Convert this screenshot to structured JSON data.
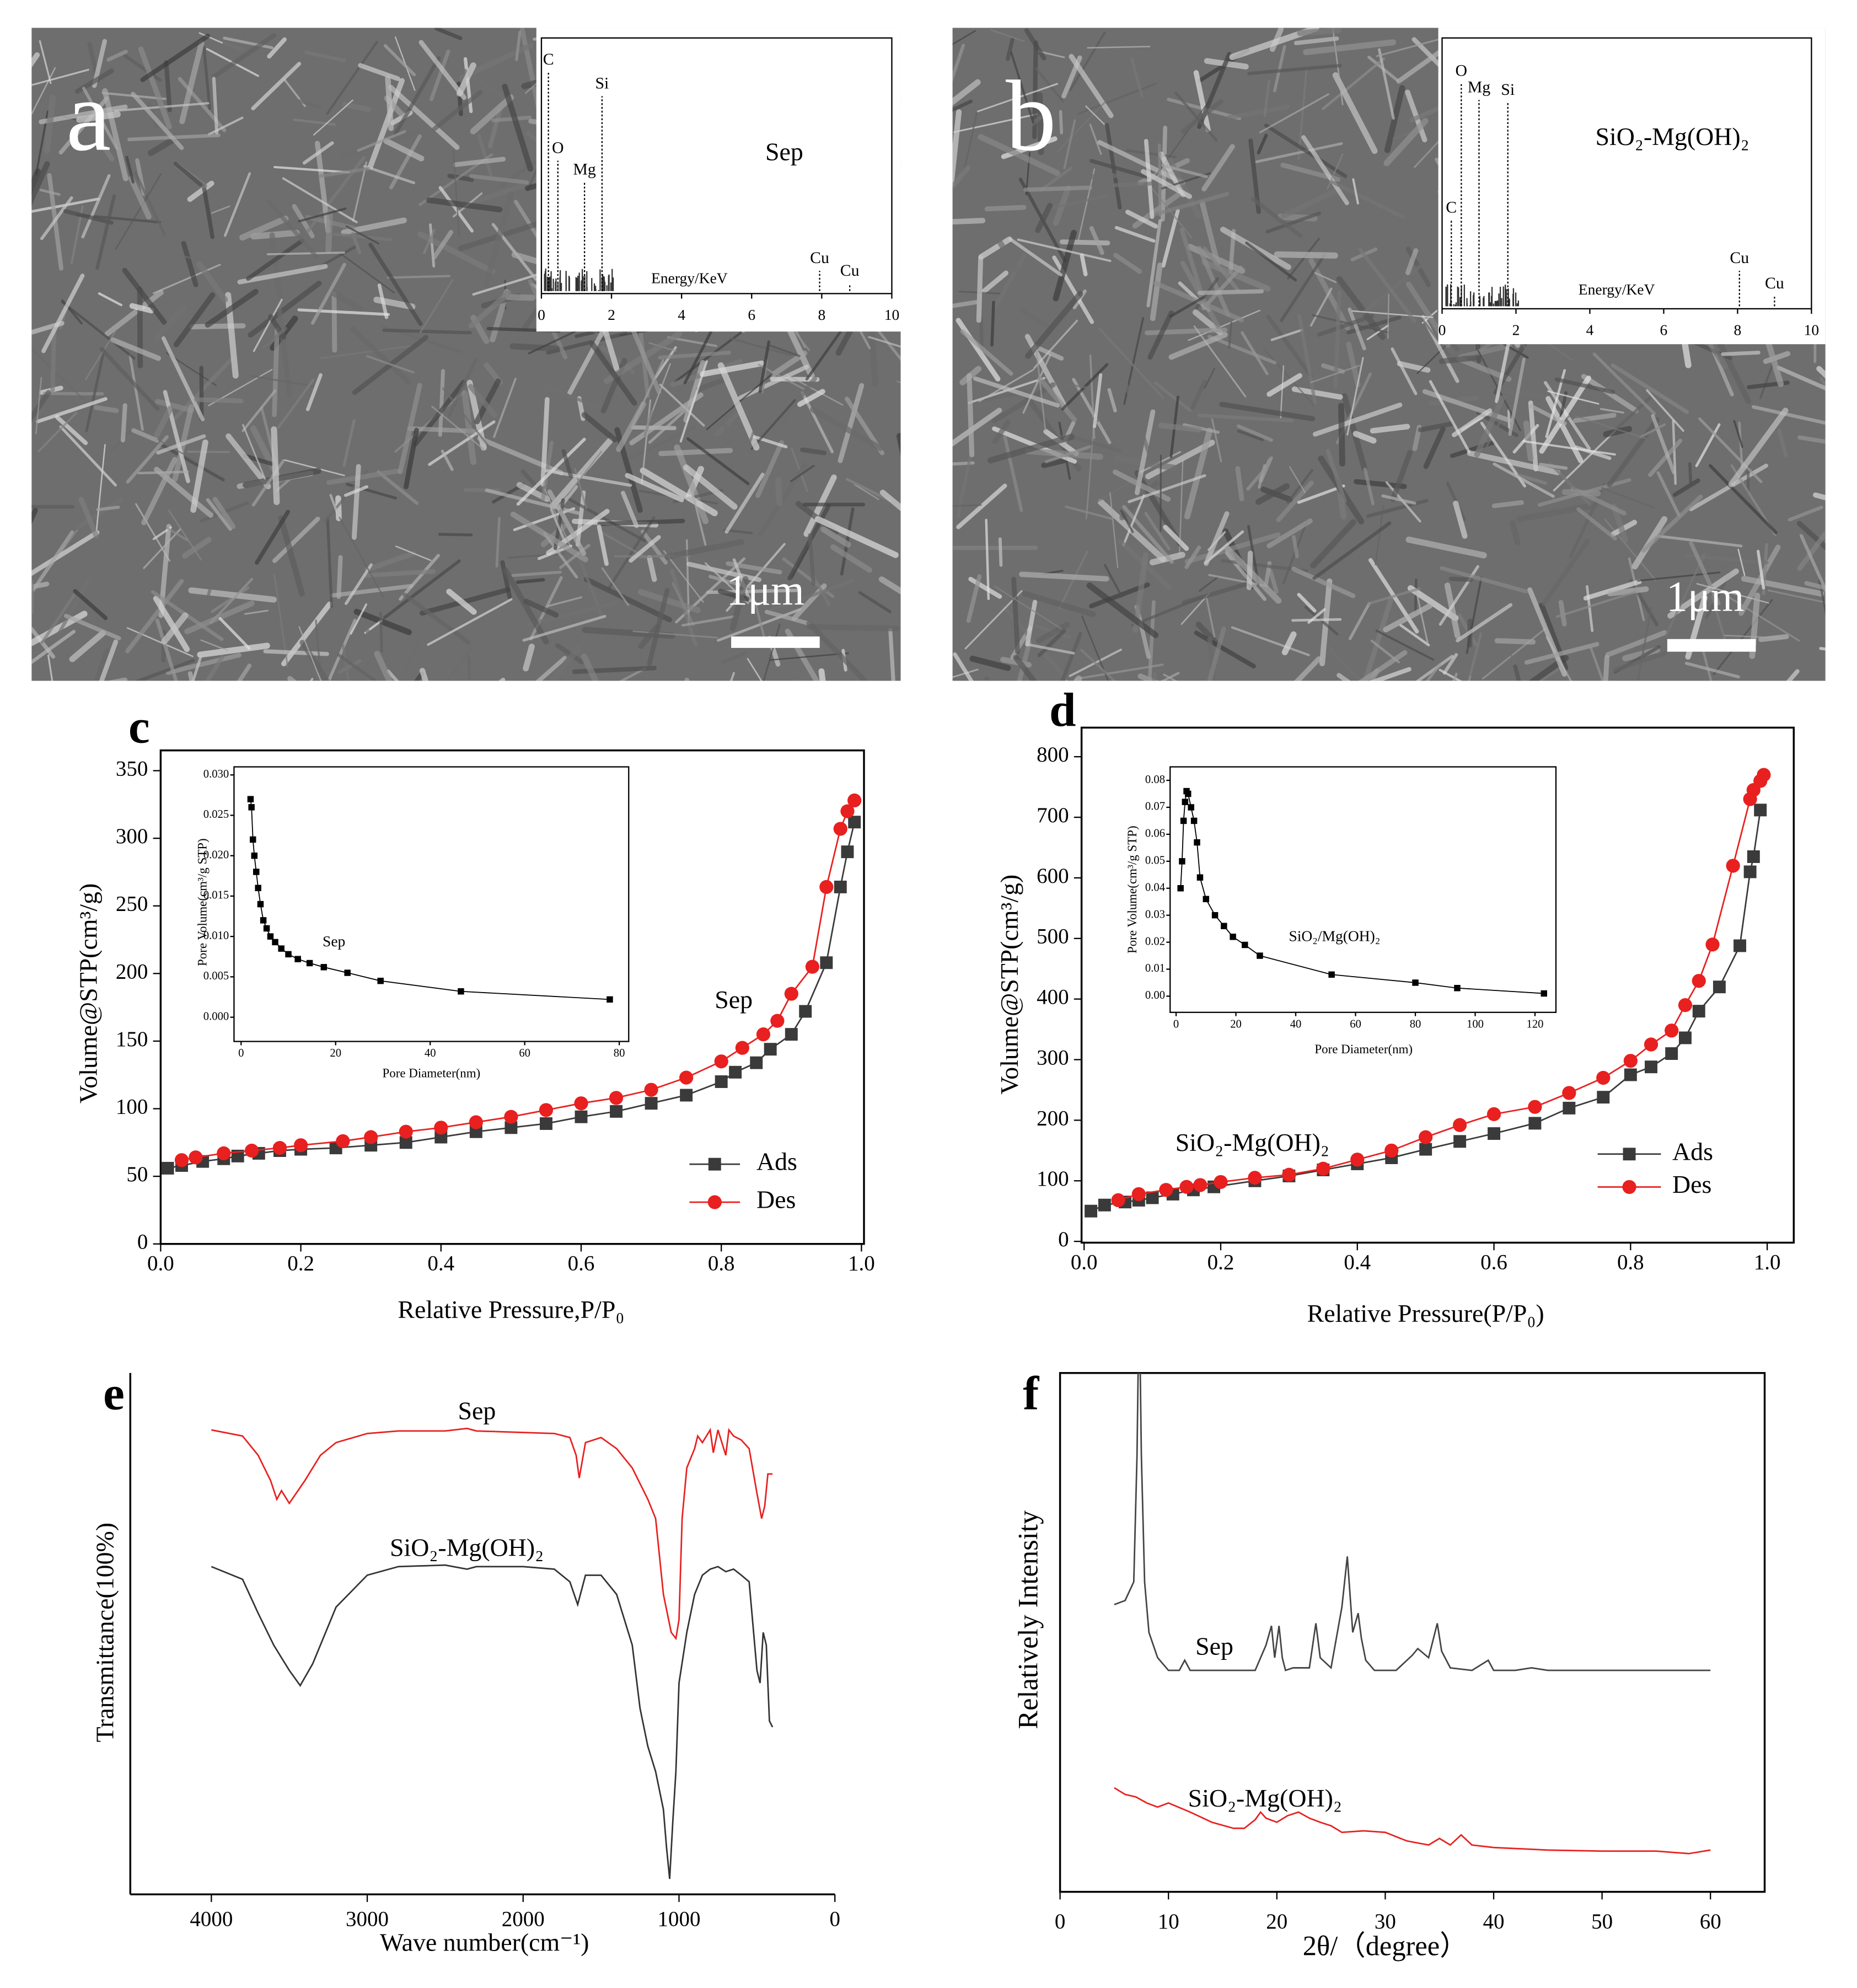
{
  "chart_data": [
    {
      "type": "image",
      "panel": "a",
      "scale_bar": "1μm",
      "inset": {
        "type": "eds",
        "title": "Sep",
        "xlabel": "Energy/KeV",
        "xlim": [
          0,
          10
        ],
        "xticks": [
          0,
          2,
          4,
          6,
          8,
          10
        ],
        "peaks": [
          {
            "label": "C",
            "x": 0.2
          },
          {
            "label": "O",
            "x": 0.47
          },
          {
            "label": "Mg",
            "x": 1.23
          },
          {
            "label": "Si",
            "x": 1.73
          },
          {
            "label": "Cu",
            "x": 7.94
          },
          {
            "label": "Cu",
            "x": 8.8
          }
        ]
      }
    },
    {
      "type": "image",
      "panel": "b",
      "scale_bar": "1μm",
      "inset": {
        "type": "eds",
        "title": "SiO₂-Mg(OH)₂",
        "xlabel": "Energy/KeV",
        "xlim": [
          0,
          10
        ],
        "xticks": [
          0,
          2,
          4,
          6,
          8,
          10
        ],
        "peaks": [
          {
            "label": "C",
            "x": 0.25
          },
          {
            "label": "O",
            "x": 0.52
          },
          {
            "label": "Mg",
            "x": 1.0
          },
          {
            "label": "Si",
            "x": 1.78
          },
          {
            "label": "Cu",
            "x": 8.05
          },
          {
            "label": "Cu",
            "x": 9.0
          }
        ]
      }
    },
    {
      "type": "line",
      "panel": "c",
      "xlabel": "Relative Pressure,P/P₀",
      "ylabel": "Volume@STP(cm³/g)",
      "annotation": "Sep",
      "xlim": [
        0,
        1
      ],
      "ylim": [
        0,
        365
      ],
      "xticks": [
        {
          "value": 0,
          "label": "0.0"
        },
        0.2,
        0.4,
        0.6,
        0.8,
        {
          "value": 1,
          "label": "1.0"
        }
      ],
      "yticks": [
        0,
        50,
        100,
        150,
        200,
        250,
        300,
        350
      ],
      "legend": "lower right",
      "series": [
        {
          "name": "Ads",
          "color": "#3a3a3a",
          "marker": "square",
          "x": [
            0.01,
            0.03,
            0.06,
            0.09,
            0.11,
            0.14,
            0.17,
            0.2,
            0.25,
            0.3,
            0.35,
            0.4,
            0.45,
            0.5,
            0.55,
            0.6,
            0.65,
            0.7,
            0.75,
            0.8,
            0.82,
            0.85,
            0.87,
            0.9,
            0.92,
            0.95,
            0.97,
            0.98,
            0.99
          ],
          "values": [
            56,
            58,
            61,
            63,
            65,
            67,
            69,
            70,
            71,
            73,
            75,
            79,
            83,
            86,
            89,
            94,
            98,
            104,
            110,
            120,
            127,
            134,
            144,
            155,
            172,
            208,
            264,
            290,
            312
          ]
        },
        {
          "name": "Des",
          "color": "#e8201f",
          "marker": "circle",
          "x": [
            0.03,
            0.05,
            0.09,
            0.13,
            0.17,
            0.2,
            0.26,
            0.3,
            0.35,
            0.4,
            0.45,
            0.5,
            0.55,
            0.6,
            0.65,
            0.7,
            0.75,
            0.8,
            0.83,
            0.86,
            0.88,
            0.9,
            0.93,
            0.95,
            0.97,
            0.98,
            0.99
          ],
          "values": [
            62,
            64,
            67,
            69,
            71,
            73,
            76,
            79,
            83,
            86,
            90,
            94,
            99,
            104,
            108,
            114,
            123,
            135,
            145,
            155,
            165,
            185,
            205,
            264,
            307,
            320,
            328
          ]
        }
      ],
      "inset": {
        "type": "line",
        "xlabel": "Pore Diameter(nm)",
        "ylabel": "Pore Volume(cm³/g STP)",
        "annotation": "Sep",
        "xlim": [
          -1.5,
          82
        ],
        "ylim": [
          -0.003,
          0.031
        ],
        "xticks": [
          0,
          20,
          40,
          60,
          80
        ],
        "yticks": [
          {
            "value": 0,
            "label": "0.000"
          },
          {
            "value": 0.005,
            "label": "0.005"
          },
          {
            "value": 0.01,
            "label": "0.010"
          },
          {
            "value": 0.015,
            "label": "0.015"
          },
          {
            "value": 0.02,
            "label": "0.020"
          },
          {
            "value": 0.025,
            "label": "0.025"
          },
          {
            "value": 0.03,
            "label": "0.030"
          }
        ],
        "series": [
          {
            "color": "#000000",
            "marker": "square",
            "x": [
              2,
              2.2,
              2.5,
              2.8,
              3.2,
              3.6,
              4.1,
              4.7,
              5.4,
              6.2,
              7.2,
              8.5,
              10,
              12,
              14.5,
              17.5,
              22.5,
              29.5,
              46.5,
              78
            ],
            "values": [
              0.027,
              0.026,
              0.022,
              0.02,
              0.018,
              0.016,
              0.014,
              0.012,
              0.011,
              0.01,
              0.0093,
              0.0085,
              0.0078,
              0.0072,
              0.0067,
              0.0062,
              0.0055,
              0.0045,
              0.0032,
              0.0022
            ]
          }
        ]
      }
    },
    {
      "type": "line",
      "panel": "d",
      "xlabel": "Relative Pressure(P/P₀)",
      "ylabel": "Volume@STP(cm³/g)",
      "annotation": "SiO₂-Mg(OH)₂",
      "xlim": [
        0,
        1.04
      ],
      "ylim": [
        0,
        848
      ],
      "xticks": [
        {
          "value": 0,
          "label": "0.0"
        },
        0.2,
        0.4,
        0.6,
        0.8,
        {
          "value": 1,
          "label": "1.0"
        }
      ],
      "yticks": [
        0,
        100,
        200,
        300,
        400,
        500,
        600,
        700,
        800
      ],
      "legend": "lower right",
      "series": [
        {
          "name": "Ads",
          "color": "#3a3a3a",
          "marker": "square",
          "x": [
            0.01,
            0.03,
            0.06,
            0.08,
            0.1,
            0.13,
            0.16,
            0.19,
            0.25,
            0.3,
            0.35,
            0.4,
            0.45,
            0.5,
            0.55,
            0.6,
            0.66,
            0.71,
            0.76,
            0.8,
            0.83,
            0.86,
            0.88,
            0.9,
            0.93,
            0.96,
            0.975,
            0.98,
            0.99
          ],
          "values": [
            50,
            60,
            65,
            68,
            72,
            78,
            85,
            90,
            100,
            108,
            118,
            128,
            138,
            152,
            165,
            178,
            195,
            220,
            238,
            275,
            288,
            310,
            336,
            380,
            420,
            488,
            610,
            635,
            712
          ]
        },
        {
          "name": "Des",
          "color": "#e8201f",
          "marker": "circle",
          "x": [
            0.05,
            0.08,
            0.12,
            0.15,
            0.17,
            0.2,
            0.25,
            0.3,
            0.35,
            0.4,
            0.45,
            0.5,
            0.55,
            0.6,
            0.66,
            0.71,
            0.76,
            0.8,
            0.83,
            0.86,
            0.88,
            0.9,
            0.92,
            0.95,
            0.975,
            0.98,
            0.99,
            0.995
          ],
          "values": [
            68,
            78,
            85,
            90,
            93,
            98,
            105,
            110,
            120,
            135,
            150,
            172,
            192,
            210,
            222,
            245,
            270,
            298,
            325,
            348,
            390,
            430,
            490,
            620,
            730,
            745,
            760,
            770
          ]
        }
      ],
      "inset": {
        "type": "line",
        "xlabel": "Pore Diameter(nm)",
        "ylabel": "Pore Volume(cm³/g STP)",
        "annotation": "SiO₂/Mg(OH)₂",
        "xlim": [
          -2,
          127
        ],
        "ylim": [
          -0.006,
          0.085
        ],
        "xticks": [
          0,
          20,
          40,
          60,
          80,
          100,
          120
        ],
        "yticks": [
          {
            "value": 0,
            "label": "0.00"
          },
          {
            "value": 0.01,
            "label": "0.01"
          },
          {
            "value": 0.02,
            "label": "0.02"
          },
          {
            "value": 0.03,
            "label": "0.03"
          },
          {
            "value": 0.04,
            "label": "0.04"
          },
          {
            "value": 0.05,
            "label": "0.05"
          },
          {
            "value": 0.06,
            "label": "0.06"
          },
          {
            "value": 0.07,
            "label": "0.07"
          },
          {
            "value": 0.08,
            "label": "0.08"
          }
        ],
        "series": [
          {
            "color": "#000000",
            "marker": "square",
            "x": [
              1.5,
              2,
              2.5,
              3,
              3.5,
              4,
              5,
              6,
              7,
              8,
              10,
              13,
              16,
              19,
              23,
              28,
              52,
              80,
              94,
              123
            ],
            "values": [
              0.04,
              0.05,
              0.065,
              0.072,
              0.076,
              0.075,
              0.07,
              0.065,
              0.057,
              0.044,
              0.036,
              0.03,
              0.026,
              0.022,
              0.019,
              0.015,
              0.008,
              0.005,
              0.003,
              0.001
            ]
          }
        ]
      }
    },
    {
      "type": "line",
      "panel": "e",
      "xlabel": "Wave number(cm⁻¹)",
      "ylabel": "Transmittance(100%)",
      "xlim": [
        4520,
        0
      ],
      "ylim": [
        0,
        100
      ],
      "xticks": [
        4000,
        3000,
        2000,
        1000,
        0
      ],
      "series": [
        {
          "name": "Sep",
          "color": "#e8201f",
          "x": [
            4000,
            3800,
            3700,
            3620,
            3580,
            3550,
            3500,
            3400,
            3300,
            3200,
            3000,
            2800,
            2500,
            2360,
            2300,
            2000,
            1800,
            1700,
            1660,
            1640,
            1600,
            1500,
            1400,
            1300,
            1200,
            1150,
            1100,
            1050,
            1020,
            1000,
            980,
            950,
            900,
            880,
            850,
            800,
            780,
            750,
            700,
            680,
            650,
            600,
            550,
            500,
            470,
            450,
            430,
            400
          ],
          "values": [
            92.5,
            91.3,
            87.5,
            82.5,
            78.8,
            80.5,
            78,
            82.5,
            87.5,
            90,
            91.8,
            92.3,
            92.3,
            92.8,
            92.3,
            92,
            91.8,
            91,
            87.5,
            83,
            90,
            91,
            88.8,
            85,
            78.8,
            75,
            60,
            52.5,
            51.3,
            55,
            75,
            85,
            88.8,
            91.3,
            90,
            92.5,
            88,
            92.5,
            87.5,
            92.5,
            91.3,
            90.5,
            88.8,
            80,
            75,
            77.5,
            83.8,
            83.8
          ]
        },
        {
          "name": "SiO₂-Mg(OH)₂",
          "color": "#333333",
          "x": [
            4000,
            3800,
            3700,
            3600,
            3500,
            3430,
            3350,
            3200,
            3000,
            2800,
            2500,
            2360,
            2300,
            2000,
            1800,
            1700,
            1650,
            1600,
            1500,
            1400,
            1300,
            1250,
            1200,
            1150,
            1100,
            1080,
            1060,
            1040,
            1020,
            1000,
            950,
            900,
            850,
            800,
            750,
            700,
            650,
            600,
            550,
            500,
            480,
            460,
            440,
            420,
            400
          ],
          "values": [
            65.5,
            63,
            56.3,
            50,
            45,
            42,
            46.3,
            57.5,
            63.8,
            65.5,
            65.8,
            65,
            65.5,
            65.5,
            65,
            62.5,
            58,
            63.8,
            63.8,
            60,
            50,
            37.5,
            30,
            25,
            17.5,
            10,
            3.8,
            15,
            25,
            42.5,
            52.5,
            60,
            63.8,
            65,
            65.5,
            64.5,
            65,
            63.8,
            62.5,
            45,
            42.5,
            52.5,
            50,
            35,
            33.8
          ]
        }
      ]
    },
    {
      "type": "line",
      "panel": "f",
      "xlabel": "2θ/（degree）",
      "ylabel": "Relatively Intensity",
      "xlim": [
        0,
        65
      ],
      "ylim": [
        0,
        103.75
      ],
      "xticks": [
        0,
        10,
        20,
        30,
        40,
        50,
        60
      ],
      "series": [
        {
          "name": "Sep",
          "color": "#444444",
          "x": [
            5,
            6,
            6.8,
            7.1,
            7.3,
            7.5,
            7.8,
            8.2,
            9,
            10,
            11,
            11.5,
            12,
            14,
            16,
            18,
            19,
            19.5,
            19.8,
            20.2,
            20.5,
            20.8,
            21.5,
            23,
            23.6,
            24,
            25,
            26,
            26.5,
            27,
            27.5,
            27.8,
            28.2,
            29,
            31,
            32.5,
            33,
            34,
            34.8,
            35.2,
            36,
            38,
            39.5,
            40,
            42,
            43.5,
            45,
            50,
            55,
            60
          ],
          "values": [
            58,
            58.8,
            62.5,
            87.5,
            120,
            87.5,
            62.5,
            52.5,
            47.5,
            45,
            45,
            47,
            45,
            45,
            45,
            45,
            50,
            53.8,
            47.5,
            53.8,
            47.5,
            45,
            45.5,
            45.5,
            54.3,
            47.5,
            45.5,
            57.5,
            67.5,
            52.5,
            56.3,
            51.3,
            47,
            45,
            45,
            48,
            49.3,
            47.5,
            54.3,
            48.8,
            45.5,
            45,
            47,
            45,
            45,
            45.5,
            45,
            45,
            45,
            45
          ]
        },
        {
          "name": "SiO₂-Mg(OH)₂",
          "color": "#e8201f",
          "x": [
            5,
            6,
            7,
            8,
            9,
            10,
            12,
            14,
            16,
            17,
            18,
            18.5,
            19,
            20,
            21,
            22,
            23,
            24,
            25,
            26,
            28,
            30,
            32,
            34,
            35,
            36,
            37,
            38,
            40,
            45,
            50,
            55,
            58,
            60
          ],
          "values": [
            21.8,
            20.5,
            20,
            18.8,
            18,
            18.8,
            17,
            15,
            13.8,
            13.8,
            15.5,
            17,
            15.8,
            15,
            16.3,
            17,
            15.8,
            15,
            14.3,
            13,
            13.3,
            13,
            11.3,
            10.5,
            11.8,
            10.5,
            12.5,
            10.5,
            10,
            9.5,
            9.3,
            9.3,
            8.8,
            9.5
          ]
        }
      ]
    }
  ]
}
